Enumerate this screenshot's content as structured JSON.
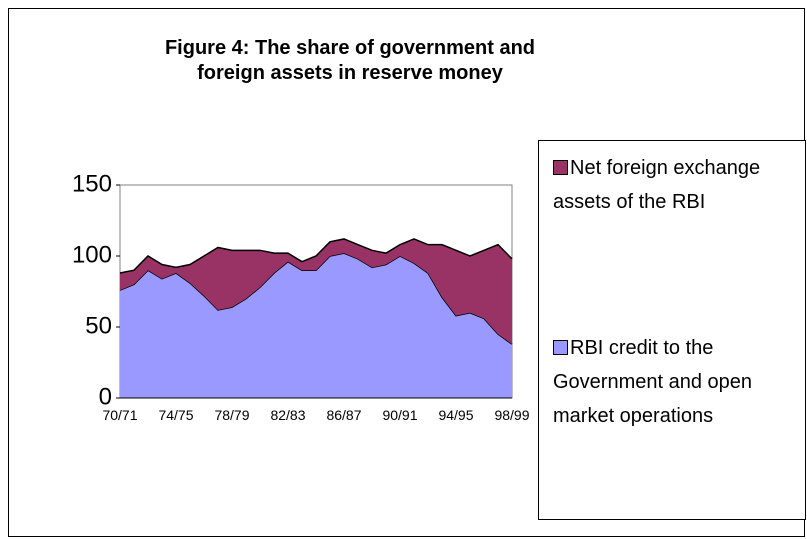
{
  "chart_data": {
    "type": "stacked_area",
    "title": "Figure 4: The share of government and foreign assets in reserve money",
    "categories": [
      "70/71",
      null,
      null,
      null,
      "74/75",
      null,
      null,
      null,
      "78/79",
      null,
      null,
      null,
      "82/83",
      null,
      null,
      null,
      "86/87",
      null,
      null,
      null,
      "90/91",
      null,
      null,
      null,
      "94/95",
      null,
      null,
      null,
      "98/99"
    ],
    "series": [
      {
        "name": "RBI credit to the Government and open market operations",
        "color": "#9999ff",
        "values": [
          76,
          80,
          90,
          84,
          88,
          81,
          72,
          62,
          64,
          70,
          78,
          88,
          96,
          90,
          90,
          100,
          102,
          98,
          92,
          94,
          100,
          95,
          88,
          71,
          58,
          60,
          56,
          45,
          38
        ]
      },
      {
        "name": "Net foreign exchange assets of  the RBI",
        "color": "#993366",
        "values": [
          12,
          10,
          10,
          10,
          4,
          13,
          28,
          44,
          40,
          34,
          26,
          14,
          6,
          6,
          10,
          10,
          10,
          10,
          12,
          8,
          8,
          17,
          20,
          37,
          46,
          40,
          48,
          63,
          60
        ]
      }
    ],
    "ylim": [
      0,
      150
    ],
    "yticks": [
      0,
      50,
      100,
      150
    ],
    "grid": true
  }
}
